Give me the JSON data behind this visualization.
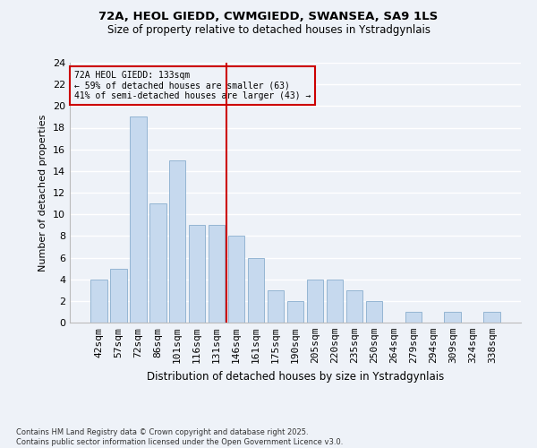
{
  "title1": "72A, HEOL GIEDD, CWMGIEDD, SWANSEA, SA9 1LS",
  "title2": "Size of property relative to detached houses in Ystradgynlais",
  "xlabel": "Distribution of detached houses by size in Ystradgynlais",
  "ylabel": "Number of detached properties",
  "categories": [
    "42sqm",
    "57sqm",
    "72sqm",
    "86sqm",
    "101sqm",
    "116sqm",
    "131sqm",
    "146sqm",
    "161sqm",
    "175sqm",
    "190sqm",
    "205sqm",
    "220sqm",
    "235sqm",
    "250sqm",
    "264sqm",
    "279sqm",
    "294sqm",
    "309sqm",
    "324sqm",
    "338sqm"
  ],
  "values": [
    4,
    5,
    19,
    11,
    15,
    9,
    9,
    8,
    6,
    3,
    2,
    4,
    4,
    3,
    2,
    0,
    1,
    0,
    1,
    0,
    1
  ],
  "bar_color": "#c6d9ee",
  "bar_edge_color": "#89aece",
  "vline_index": 6.5,
  "vline_color": "#cc0000",
  "annotation_title": "72A HEOL GIEDD: 133sqm",
  "annotation_line1": "← 59% of detached houses are smaller (63)",
  "annotation_line2": "41% of semi-detached houses are larger (43) →",
  "annotation_box_color": "#cc0000",
  "ylim": [
    0,
    24
  ],
  "yticks": [
    0,
    2,
    4,
    6,
    8,
    10,
    12,
    14,
    16,
    18,
    20,
    22,
    24
  ],
  "footer": "Contains HM Land Registry data © Crown copyright and database right 2025.\nContains public sector information licensed under the Open Government Licence v3.0.",
  "bg_color": "#eef2f8",
  "grid_color": "#ffffff"
}
